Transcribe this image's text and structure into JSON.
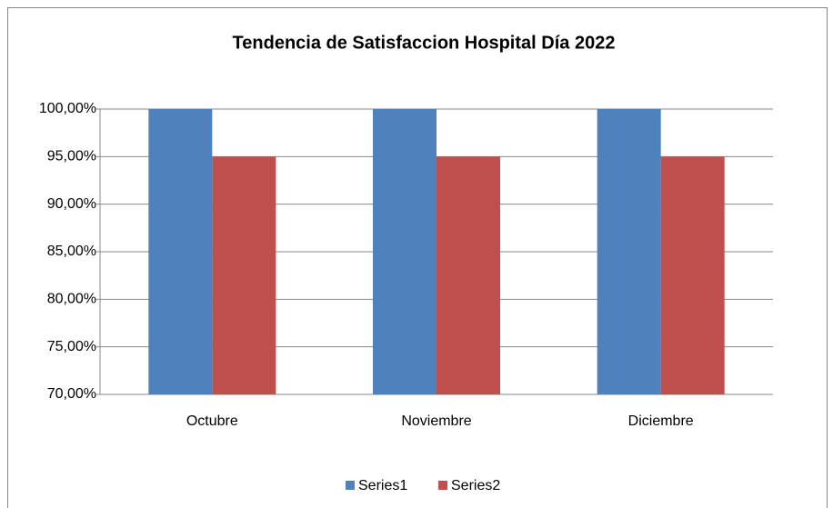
{
  "chart_data": {
    "type": "bar",
    "title": "Tendencia de Satisfaccion Hospital Día 2022",
    "categories": [
      "Octubre",
      "Noviembre",
      "Diciembre"
    ],
    "series": [
      {
        "name": "Series1",
        "color": "#4f81bd",
        "values": [
          100,
          100,
          100
        ]
      },
      {
        "name": "Series2",
        "color": "#c0504d",
        "values": [
          95,
          95,
          95
        ]
      }
    ],
    "ylim": [
      70,
      100
    ],
    "yticks": [
      {
        "value": 70,
        "label": "70,00%"
      },
      {
        "value": 75,
        "label": "75,00%"
      },
      {
        "value": 80,
        "label": "80,00%"
      },
      {
        "value": 85,
        "label": "85,00%"
      },
      {
        "value": 90,
        "label": "90,00%"
      },
      {
        "value": 95,
        "label": "95,00%"
      },
      {
        "value": 100,
        "label": "100,00%"
      }
    ],
    "grid": true,
    "legend": "bottom"
  }
}
